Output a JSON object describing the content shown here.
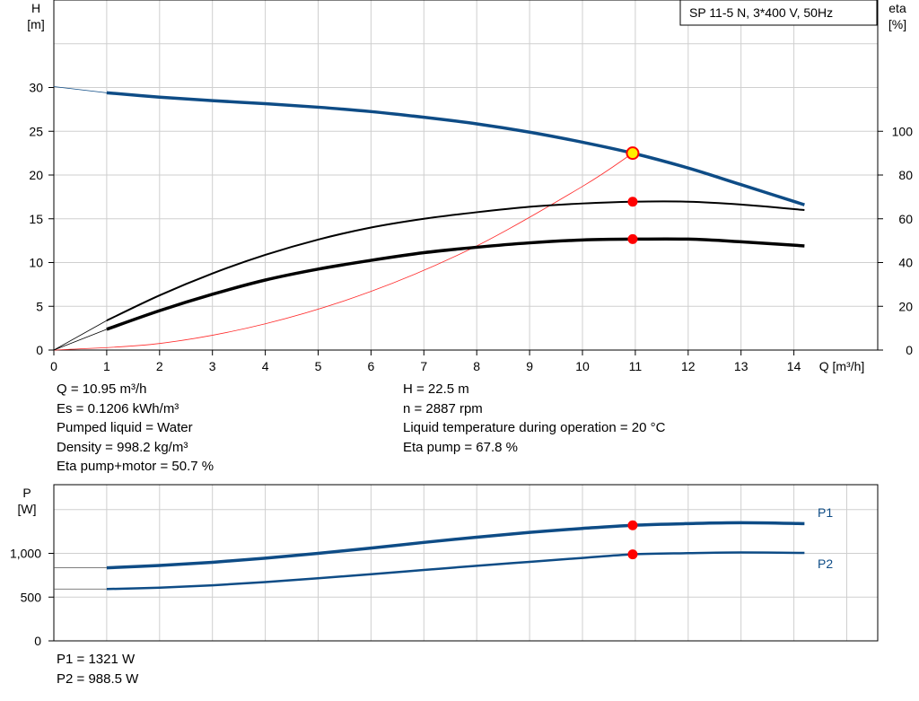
{
  "title": "SP 11-5 N, 3*400 V, 50Hz",
  "colors": {
    "head": "#0e4c86",
    "eta": "#000000",
    "system": "#ff2a2a",
    "power": "#0e4c86",
    "marker": "#ff0000",
    "grid": "#cfcfcf"
  },
  "chart_data": [
    {
      "type": "line",
      "title": "SP 11-5 N, 3*400 V, 50Hz",
      "xlabel": "Q [m³/h]",
      "ylabel": "H [m]",
      "ylabel_right": "eta [%]",
      "xlim": [
        0,
        15
      ],
      "ylim": [
        0,
        40
      ],
      "ylim_right": [
        0,
        160
      ],
      "x_ticks": [
        "0",
        "1",
        "2",
        "3",
        "4",
        "5",
        "6",
        "7",
        "8",
        "9",
        "10",
        "11",
        "12",
        "13",
        "14"
      ],
      "y_ticks": [
        "0",
        "5",
        "10",
        "15",
        "20",
        "25",
        "30"
      ],
      "y_ticks_right": [
        "0",
        "20",
        "40",
        "60",
        "80",
        "100"
      ],
      "grid": true,
      "series": [
        {
          "key": "head",
          "axis": "left",
          "x": [
            1,
            2,
            3,
            4,
            5,
            6,
            7,
            8,
            9,
            10,
            10.95,
            12,
            13,
            14.2
          ],
          "values": [
            29.4,
            28.9,
            28.5,
            28.15,
            27.75,
            27.25,
            26.6,
            25.85,
            24.9,
            23.75,
            22.5,
            20.8,
            18.9,
            16.6
          ]
        },
        {
          "key": "eta_pump",
          "axis": "right",
          "x": [
            1,
            2,
            3,
            4,
            5,
            6,
            7,
            8,
            9,
            10,
            10.95,
            12,
            13,
            14.2
          ],
          "values": [
            13.5,
            25,
            35,
            43.5,
            50.5,
            56,
            60,
            63,
            65.5,
            67,
            67.8,
            67.8,
            66.5,
            64
          ]
        },
        {
          "key": "eta_total",
          "axis": "right",
          "x": [
            1,
            2,
            3,
            4,
            5,
            6,
            7,
            8,
            9,
            10,
            10.95,
            12,
            13,
            14.2
          ],
          "values": [
            9.5,
            18,
            25.5,
            32,
            37,
            41,
            44.5,
            47,
            49,
            50.3,
            50.7,
            50.7,
            49.5,
            47.6
          ]
        }
      ],
      "system_curve": {
        "x": [
          0,
          2,
          4,
          6,
          8,
          10,
          10.95
        ],
        "values": [
          0,
          0.75,
          3,
          6.7,
          11.9,
          18.7,
          22.5
        ]
      },
      "duty_point": {
        "x": 10.95,
        "head": 22.5,
        "eta_pump": 67.8,
        "eta_total": 50.7
      }
    },
    {
      "type": "line",
      "ylabel": "P [W]",
      "xlim": [
        0,
        15
      ],
      "ylim": [
        0,
        1500
      ],
      "y_ticks": [
        "0",
        "500",
        "1,000"
      ],
      "grid": true,
      "series": [
        {
          "name": "P1",
          "x": [
            1,
            2,
            3,
            4,
            5,
            6,
            7,
            8,
            9,
            10,
            10.95,
            12,
            13,
            14.2
          ],
          "values": [
            835,
            862,
            898,
            945,
            1000,
            1060,
            1125,
            1185,
            1240,
            1285,
            1321,
            1340,
            1350,
            1340
          ]
        },
        {
          "name": "P2",
          "x": [
            1,
            2,
            3,
            4,
            5,
            6,
            7,
            8,
            9,
            10,
            10.95,
            12,
            13,
            14.2
          ],
          "values": [
            592,
            608,
            635,
            672,
            715,
            762,
            810,
            858,
            903,
            948,
            988.5,
            1002,
            1010,
            1005
          ]
        }
      ],
      "start_values": {
        "P1": 835,
        "P2": 592
      },
      "duty_point": {
        "x": 10.95,
        "P1": 1321,
        "P2": 988.5
      }
    }
  ],
  "info_left": [
    "Q = 10.95 m³/h",
    "Es = 0.1206 kWh/m³",
    "Pumped liquid = Water",
    "Density = 998.2 kg/m³",
    "Eta pump+motor = 50.7 %"
  ],
  "info_right": [
    "H = 22.5 m",
    "n = 2887 rpm",
    "Liquid temperature during operation = 20 °C",
    "Eta pump = 67.8 %"
  ],
  "info_power": [
    "P1 = 1321 W",
    "P2 = 988.5 W"
  ]
}
